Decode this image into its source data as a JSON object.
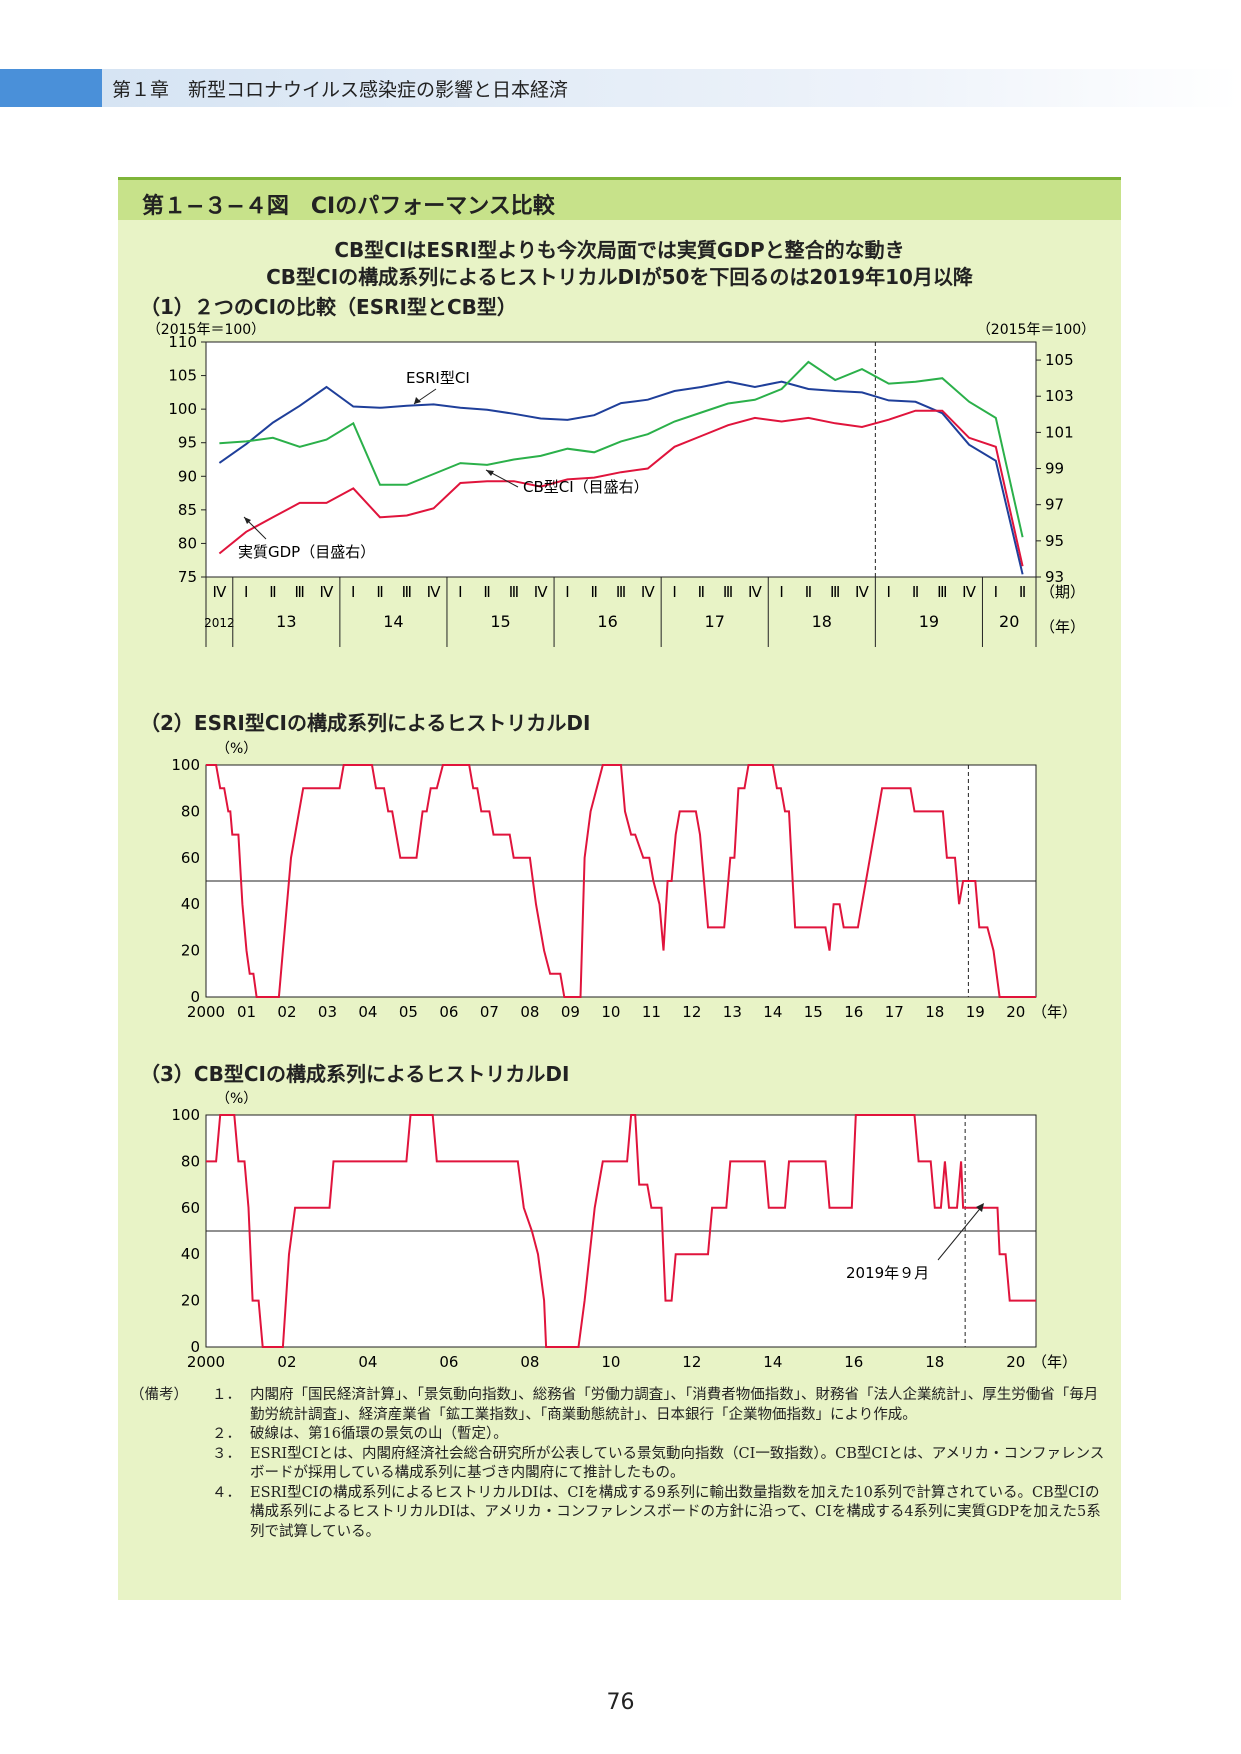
{
  "chapter_header": {
    "title": "第１章　新型コロナウイルス感染症の影響と日本経済",
    "accent_color": "#4a90d9"
  },
  "figure": {
    "title": "第１−３−４図　CIのパフォーマンス比較",
    "headline_1": "CB型CIはESRI型よりも今次局面では実質GDPと整合的な動き",
    "headline_2": "CB型CIの構成系列によるヒストリカルDIが50を下回るのは2019年10月以降",
    "header_color": "#c7e28a",
    "panel_color": "#e8f3c6"
  },
  "chart_data": [
    {
      "type": "line",
      "title": "（1）２つのCIの比較（ESRI型とCB型）",
      "left_axis_unit": "（2015年＝100）",
      "right_axis_unit": "（2015年＝100）",
      "ylim_left": [
        75,
        110
      ],
      "yticks_left": [
        75,
        80,
        85,
        90,
        95,
        100,
        105,
        110
      ],
      "ylim_right": [
        93,
        106
      ],
      "yticks_right": [
        93,
        95,
        97,
        99,
        101,
        103,
        105
      ],
      "quarter_labels": [
        "Ⅳ",
        "Ⅰ",
        "Ⅱ",
        "Ⅲ",
        "Ⅳ",
        "Ⅰ",
        "Ⅱ",
        "Ⅲ",
        "Ⅳ",
        "Ⅰ",
        "Ⅱ",
        "Ⅲ",
        "Ⅳ",
        "Ⅰ",
        "Ⅱ",
        "Ⅲ",
        "Ⅳ",
        "Ⅰ",
        "Ⅱ",
        "Ⅲ",
        "Ⅳ",
        "Ⅰ",
        "Ⅱ",
        "Ⅲ",
        "Ⅳ",
        "Ⅰ",
        "Ⅱ",
        "Ⅲ",
        "Ⅳ",
        "Ⅰ",
        "Ⅱ"
      ],
      "quarter_axis_unit": "（期）",
      "year_labels": [
        {
          "label": "2012",
          "start": 0,
          "span": 1
        },
        {
          "label": "13",
          "start": 1,
          "span": 4
        },
        {
          "label": "14",
          "start": 5,
          "span": 4
        },
        {
          "label": "15",
          "start": 9,
          "span": 4
        },
        {
          "label": "16",
          "start": 13,
          "span": 4
        },
        {
          "label": "17",
          "start": 17,
          "span": 4
        },
        {
          "label": "18",
          "start": 21,
          "span": 4
        },
        {
          "label": "19",
          "start": 25,
          "span": 4
        },
        {
          "label": "20",
          "start": 29,
          "span": 2
        }
      ],
      "year_axis_unit": "（年）",
      "dashed_line_after_index": 24,
      "series": [
        {
          "name": "ESRI型CI",
          "axis": "left",
          "color": "#1f3f9a",
          "values": [
            92.0,
            94.8,
            98.0,
            100.5,
            103.3,
            100.4,
            100.2,
            100.5,
            100.7,
            100.2,
            99.9,
            99.3,
            98.6,
            98.4,
            99.1,
            100.9,
            101.4,
            102.7,
            103.3,
            104.1,
            103.3,
            104.1,
            103.0,
            102.7,
            102.5,
            101.3,
            101.1,
            99.4,
            94.7,
            92.3,
            75.4
          ]
        },
        {
          "name": "CB型CI（目盛右）",
          "axis": "right",
          "color": "#2bb04a",
          "values": [
            100.4,
            100.5,
            100.7,
            100.2,
            100.6,
            101.5,
            98.1,
            98.1,
            98.7,
            99.3,
            99.2,
            99.5,
            99.7,
            100.1,
            99.9,
            100.5,
            100.9,
            101.6,
            102.1,
            102.6,
            102.8,
            103.4,
            104.9,
            103.9,
            104.5,
            103.7,
            103.8,
            104.0,
            102.7,
            101.8,
            95.2
          ]
        },
        {
          "name": "実質GDP（目盛右）",
          "axis": "right",
          "color": "#e0143c",
          "values": [
            94.3,
            95.5,
            96.3,
            97.1,
            97.1,
            97.9,
            96.3,
            96.4,
            96.8,
            98.2,
            98.3,
            98.3,
            98.0,
            98.4,
            98.5,
            98.8,
            99.0,
            100.2,
            100.8,
            101.4,
            101.8,
            101.6,
            101.8,
            101.5,
            101.3,
            101.7,
            102.2,
            102.2,
            100.7,
            100.2,
            93.6
          ]
        }
      ],
      "labels": {
        "esri": "ESRI型CI",
        "cb": "CB型CI（目盛右）",
        "gdp": "実質GDP（目盛右）"
      }
    },
    {
      "type": "line",
      "title": "（2）ESRI型CIの構成系列によるヒストリカルDI",
      "yaxis_unit": "（%）",
      "ylim": [
        0,
        100
      ],
      "yticks": [
        0,
        20,
        40,
        60,
        80,
        100
      ],
      "xlim": [
        2000,
        2020.5
      ],
      "xticks": [
        "2000",
        "01",
        "02",
        "03",
        "04",
        "05",
        "06",
        "07",
        "08",
        "09",
        "10",
        "11",
        "12",
        "13",
        "14",
        "15",
        "16",
        "17",
        "18",
        "19",
        "20"
      ],
      "x_unit": "（年）",
      "reference_line": 50,
      "dashed_x": 2018.83,
      "series": [
        {
          "name": "",
          "color": "#e0143c",
          "points": [
            [
              2000,
              100
            ],
            [
              2000.25,
              100
            ],
            [
              2000.35,
              90
            ],
            [
              2000.45,
              90
            ],
            [
              2000.55,
              80
            ],
            [
              2000.6,
              80
            ],
            [
              2000.65,
              70
            ],
            [
              2000.8,
              70
            ],
            [
              2000.9,
              40
            ],
            [
              2001.0,
              20
            ],
            [
              2001.08,
              10
            ],
            [
              2001.17,
              10
            ],
            [
              2001.25,
              0
            ],
            [
              2001.8,
              0
            ],
            [
              2001.9,
              20
            ],
            [
              2002.1,
              60
            ],
            [
              2002.3,
              80
            ],
            [
              2002.4,
              90
            ],
            [
              2003.3,
              90
            ],
            [
              2003.4,
              100
            ],
            [
              2004.1,
              100
            ],
            [
              2004.2,
              90
            ],
            [
              2004.4,
              90
            ],
            [
              2004.5,
              80
            ],
            [
              2004.6,
              80
            ],
            [
              2004.8,
              60
            ],
            [
              2005.2,
              60
            ],
            [
              2005.35,
              80
            ],
            [
              2005.45,
              80
            ],
            [
              2005.55,
              90
            ],
            [
              2005.7,
              90
            ],
            [
              2005.85,
              100
            ],
            [
              2006.5,
              100
            ],
            [
              2006.6,
              90
            ],
            [
              2006.7,
              90
            ],
            [
              2006.8,
              80
            ],
            [
              2007.0,
              80
            ],
            [
              2007.1,
              70
            ],
            [
              2007.5,
              70
            ],
            [
              2007.6,
              60
            ],
            [
              2008.0,
              60
            ],
            [
              2008.15,
              40
            ],
            [
              2008.35,
              20
            ],
            [
              2008.5,
              10
            ],
            [
              2008.75,
              10
            ],
            [
              2008.85,
              0
            ],
            [
              2009.25,
              0
            ],
            [
              2009.35,
              60
            ],
            [
              2009.5,
              80
            ],
            [
              2009.65,
              90
            ],
            [
              2009.8,
              100
            ],
            [
              2010.25,
              100
            ],
            [
              2010.35,
              80
            ],
            [
              2010.5,
              70
            ],
            [
              2010.6,
              70
            ],
            [
              2010.8,
              60
            ],
            [
              2010.95,
              60
            ],
            [
              2011.05,
              50
            ],
            [
              2011.2,
              40
            ],
            [
              2011.3,
              20
            ],
            [
              2011.4,
              50
            ],
            [
              2011.5,
              50
            ],
            [
              2011.6,
              70
            ],
            [
              2011.7,
              80
            ],
            [
              2012.1,
              80
            ],
            [
              2012.2,
              70
            ],
            [
              2012.4,
              30
            ],
            [
              2012.8,
              30
            ],
            [
              2012.9,
              50
            ],
            [
              2012.95,
              60
            ],
            [
              2013.05,
              60
            ],
            [
              2013.15,
              90
            ],
            [
              2013.3,
              90
            ],
            [
              2013.4,
              100
            ],
            [
              2014.0,
              100
            ],
            [
              2014.1,
              90
            ],
            [
              2014.2,
              90
            ],
            [
              2014.3,
              80
            ],
            [
              2014.4,
              80
            ],
            [
              2014.55,
              30
            ],
            [
              2015.3,
              30
            ],
            [
              2015.4,
              20
            ],
            [
              2015.5,
              40
            ],
            [
              2015.65,
              40
            ],
            [
              2015.75,
              30
            ],
            [
              2016.1,
              30
            ],
            [
              2016.2,
              40
            ],
            [
              2016.4,
              60
            ],
            [
              2016.6,
              80
            ],
            [
              2016.7,
              90
            ],
            [
              2017.4,
              90
            ],
            [
              2017.5,
              80
            ],
            [
              2018.2,
              80
            ],
            [
              2018.3,
              60
            ],
            [
              2018.5,
              60
            ],
            [
              2018.6,
              40
            ],
            [
              2018.7,
              50
            ],
            [
              2019.0,
              50
            ],
            [
              2019.1,
              30
            ],
            [
              2019.3,
              30
            ],
            [
              2019.45,
              20
            ],
            [
              2019.6,
              0
            ],
            [
              2020.5,
              0
            ]
          ]
        }
      ]
    },
    {
      "type": "line",
      "title": "（3）CB型CIの構成系列によるヒストリカルDI",
      "yaxis_unit": "（%）",
      "ylim": [
        0,
        100
      ],
      "yticks": [
        0,
        20,
        40,
        60,
        80,
        100
      ],
      "xlim": [
        2000,
        2020.5
      ],
      "xticks": [
        "2000",
        "02",
        "04",
        "06",
        "08",
        "10",
        "12",
        "14",
        "16",
        "18",
        "20"
      ],
      "x_unit": "（年）",
      "reference_line": 50,
      "dashed_x": 2018.75,
      "annotation": "2019年９月",
      "series": [
        {
          "name": "",
          "color": "#e0143c",
          "points": [
            [
              2000,
              80
            ],
            [
              2000.25,
              80
            ],
            [
              2000.35,
              100
            ],
            [
              2000.7,
              100
            ],
            [
              2000.8,
              80
            ],
            [
              2000.95,
              80
            ],
            [
              2001.05,
              60
            ],
            [
              2001.15,
              20
            ],
            [
              2001.3,
              20
            ],
            [
              2001.4,
              0
            ],
            [
              2001.9,
              0
            ],
            [
              2002.05,
              40
            ],
            [
              2002.2,
              60
            ],
            [
              2003.05,
              60
            ],
            [
              2003.15,
              80
            ],
            [
              2004.95,
              80
            ],
            [
              2005.05,
              100
            ],
            [
              2005.6,
              100
            ],
            [
              2005.7,
              80
            ],
            [
              2007.7,
              80
            ],
            [
              2007.85,
              60
            ],
            [
              2008.05,
              50
            ],
            [
              2008.2,
              40
            ],
            [
              2008.35,
              20
            ],
            [
              2008.4,
              0
            ],
            [
              2009.2,
              0
            ],
            [
              2009.35,
              20
            ],
            [
              2009.6,
              60
            ],
            [
              2009.8,
              80
            ],
            [
              2010.4,
              80
            ],
            [
              2010.5,
              100
            ],
            [
              2010.6,
              100
            ],
            [
              2010.7,
              70
            ],
            [
              2010.9,
              70
            ],
            [
              2011.0,
              60
            ],
            [
              2011.25,
              60
            ],
            [
              2011.35,
              20
            ],
            [
              2011.5,
              20
            ],
            [
              2011.6,
              40
            ],
            [
              2012.4,
              40
            ],
            [
              2012.5,
              60
            ],
            [
              2012.85,
              60
            ],
            [
              2012.95,
              80
            ],
            [
              2013.8,
              80
            ],
            [
              2013.9,
              60
            ],
            [
              2014.3,
              60
            ],
            [
              2014.4,
              80
            ],
            [
              2015.3,
              80
            ],
            [
              2015.4,
              60
            ],
            [
              2015.95,
              60
            ],
            [
              2016.05,
              100
            ],
            [
              2017.5,
              100
            ],
            [
              2017.6,
              80
            ],
            [
              2017.9,
              80
            ],
            [
              2018.0,
              60
            ],
            [
              2018.15,
              60
            ],
            [
              2018.25,
              80
            ],
            [
              2018.35,
              60
            ],
            [
              2018.55,
              60
            ],
            [
              2018.65,
              80
            ],
            [
              2018.7,
              60
            ],
            [
              2019.55,
              60
            ],
            [
              2019.6,
              40
            ],
            [
              2019.75,
              40
            ],
            [
              2019.85,
              20
            ],
            [
              2020.5,
              20
            ]
          ]
        }
      ]
    }
  ],
  "notes": {
    "label": "（備考）",
    "items": [
      {
        "num": "１．",
        "text": "内閣府「国民経済計算」、「景気動向指数」、総務省「労働力調査」、「消費者物価指数」、財務省「法人企業統計」、厚生労働省「毎月勤労統計調査」、経済産業省「鉱工業指数」、「商業動態統計」、日本銀行「企業物価指数」により作成。"
      },
      {
        "num": "２．",
        "text": "破線は、第16循環の景気の山（暫定）。"
      },
      {
        "num": "３．",
        "text": "ESRI型CIとは、内閣府経済社会総合研究所が公表している景気動向指数（CI一致指数）。CB型CIとは、アメリカ・コンファレンスボードが採用している構成系列に基づき内閣府にて推計したもの。"
      },
      {
        "num": "４．",
        "text": "ESRI型CIの構成系列によるヒストリカルDIは、CIを構成する9系列に輸出数量指数を加えた10系列で計算されている。CB型CIの構成系列によるヒストリカルDIは、アメリカ・コンファレンスボードの方針に沿って、CIを構成する4系列に実質GDPを加えた5系列で試算している。"
      }
    ]
  },
  "page_number": "76"
}
